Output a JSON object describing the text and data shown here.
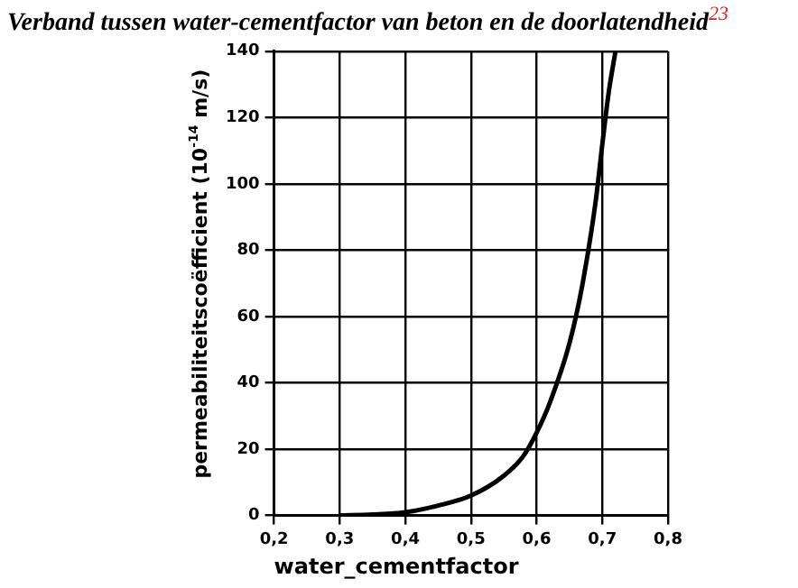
{
  "chart_data": {
    "type": "line",
    "title": "Verband tussen water-cementfactor van beton en de doorlatendheid$^{23}$",
    "xlabel": "water_cementfactor",
    "ylabel": "permeabiliteitscoëfficient (10$^{-14}$ m/s)",
    "x": [
      0.3,
      0.35,
      0.4,
      0.45,
      0.5,
      0.55,
      0.58,
      0.6,
      0.62,
      0.65,
      0.67,
      0.69,
      0.7,
      0.71,
      0.72
    ],
    "series": [
      {
        "color": "#000000",
        "values": [
          0,
          0.3,
          1,
          3,
          6,
          12,
          18,
          25,
          34,
          52,
          70,
          95,
          112,
          128,
          140
        ]
      }
    ],
    "xlim": [
      0.2,
      0.8
    ],
    "xticks": [
      {
        "value": 0.2,
        "label": "0,2"
      },
      {
        "value": 0.3,
        "label": "0,3"
      },
      {
        "value": 0.4,
        "label": "0,4"
      },
      {
        "value": 0.5,
        "label": "0,5"
      },
      {
        "value": 0.6,
        "label": "0,6"
      },
      {
        "value": 0.7,
        "label": "0,7"
      },
      {
        "value": 0.8,
        "label": "0,8"
      }
    ],
    "ylim": [
      0,
      140
    ],
    "yticks": [
      0,
      20,
      40,
      60,
      80,
      100,
      120,
      140
    ],
    "grid": true,
    "legend": false,
    "marker": "none",
    "line_style": "solid"
  }
}
